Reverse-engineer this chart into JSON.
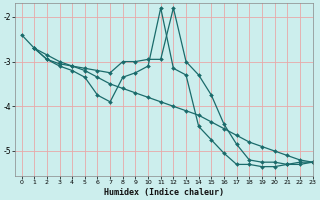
{
  "xlabel": "Humidex (Indice chaleur)",
  "bg_color": "#cceeed",
  "grid_color_major": "#e8a8a8",
  "line_color": "#1a6b6b",
  "xlim": [
    -0.5,
    23
  ],
  "ylim": [
    -5.55,
    -1.7
  ],
  "yticks": [
    -5,
    -4,
    -3,
    -2
  ],
  "xticks": [
    0,
    1,
    2,
    3,
    4,
    5,
    6,
    7,
    8,
    9,
    10,
    11,
    12,
    13,
    14,
    15,
    16,
    17,
    18,
    19,
    20,
    21,
    22,
    23
  ],
  "series": [
    {
      "x": [
        0,
        1,
        2,
        3,
        4,
        5,
        6,
        7,
        8,
        9,
        10,
        11,
        12,
        13,
        14,
        15,
        16,
        17,
        18,
        19,
        20,
        21,
        22,
        23
      ],
      "y": [
        -2.4,
        -2.7,
        -2.95,
        -3.05,
        -3.1,
        -3.15,
        -3.2,
        -3.25,
        -3.0,
        -3.0,
        -2.95,
        -2.95,
        -1.8,
        -3.0,
        -3.3,
        -3.75,
        -4.4,
        -4.85,
        -5.2,
        -5.25,
        -5.25,
        -5.3,
        -5.3,
        -5.25
      ]
    },
    {
      "x": [
        1,
        2,
        3,
        4,
        5,
        6,
        7,
        8,
        9,
        10,
        11,
        12,
        13,
        14,
        15,
        16,
        17,
        18,
        19,
        20,
        21,
        22,
        23
      ],
      "y": [
        -2.7,
        -2.85,
        -3.0,
        -3.1,
        -3.2,
        -3.35,
        -3.5,
        -3.6,
        -3.7,
        -3.8,
        -3.9,
        -4.0,
        -4.1,
        -4.2,
        -4.35,
        -4.5,
        -4.65,
        -4.8,
        -4.9,
        -5.0,
        -5.1,
        -5.2,
        -5.25
      ]
    },
    {
      "x": [
        1,
        2,
        3,
        4,
        5,
        6,
        7,
        8,
        9,
        10,
        11,
        12,
        13,
        14,
        15,
        16,
        17,
        18,
        19,
        20,
        21,
        22,
        23
      ],
      "y": [
        -2.7,
        -2.95,
        -3.1,
        -3.2,
        -3.35,
        -3.75,
        -3.9,
        -3.35,
        -3.25,
        -3.1,
        -1.8,
        -3.15,
        -3.3,
        -4.45,
        -4.75,
        -5.05,
        -5.3,
        -5.3,
        -5.35,
        -5.35,
        -5.3,
        -5.25,
        -5.25
      ]
    }
  ]
}
